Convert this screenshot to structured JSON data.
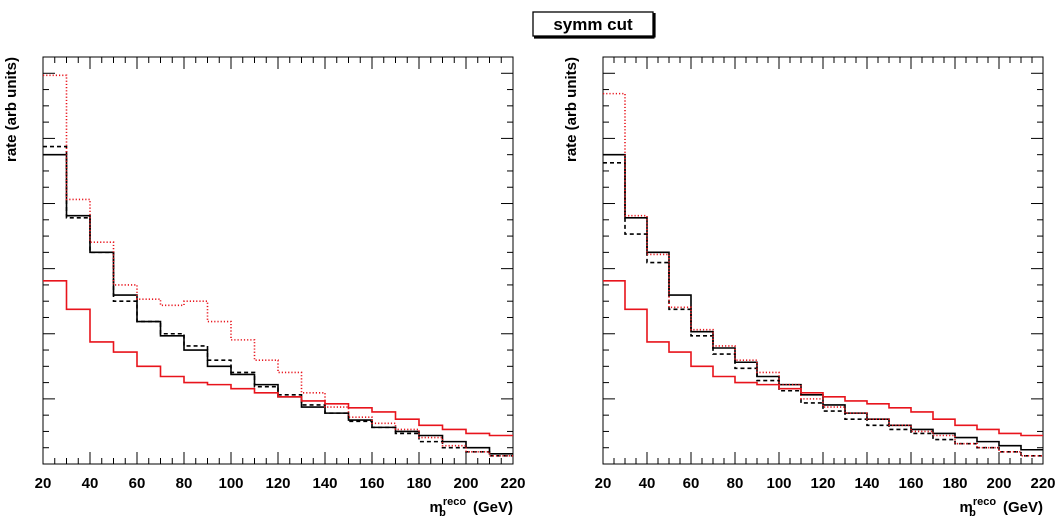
{
  "title": "symm cut",
  "chart_data": [
    {
      "type": "line",
      "step": true,
      "xlabel": "m",
      "xlabel_sub": "b",
      "xlabel_sup": "reco",
      "xlabel_unit": "(GeV)",
      "ylabel": "rate (arb units)",
      "xlim": [
        20,
        220
      ],
      "ylim": [
        0,
        1
      ],
      "xticks": [
        20,
        40,
        60,
        80,
        100,
        120,
        140,
        160,
        180,
        200,
        220
      ],
      "y_tick_labels": false,
      "bin_edges": [
        20,
        30,
        40,
        50,
        60,
        70,
        80,
        90,
        100,
        110,
        120,
        130,
        140,
        150,
        160,
        170,
        180,
        190,
        200,
        210,
        220
      ],
      "series": [
        {
          "style": "black-solid",
          "color": "#000000",
          "dash": "none",
          "values": [
            0.76,
            0.61,
            0.52,
            0.415,
            0.35,
            0.315,
            0.28,
            0.24,
            0.22,
            0.195,
            0.165,
            0.14,
            0.125,
            0.108,
            0.09,
            0.08,
            0.07,
            0.055,
            0.04,
            0.025
          ]
        },
        {
          "style": "black-dashed",
          "color": "#000000",
          "dash": "4,3",
          "values": [
            0.78,
            0.605,
            0.52,
            0.4,
            0.35,
            0.32,
            0.29,
            0.255,
            0.225,
            0.19,
            0.17,
            0.145,
            0.125,
            0.105,
            0.09,
            0.075,
            0.055,
            0.04,
            0.03,
            0.02
          ]
        },
        {
          "style": "red-solid",
          "color": "#e8141c",
          "dash": "none",
          "values": [
            0.45,
            0.38,
            0.3,
            0.275,
            0.24,
            0.215,
            0.2,
            0.195,
            0.185,
            0.175,
            0.165,
            0.155,
            0.148,
            0.138,
            0.128,
            0.11,
            0.095,
            0.085,
            0.075,
            0.07
          ]
        },
        {
          "style": "red-dotted",
          "color": "#e8141c",
          "dash": "1.2,2",
          "values": [
            0.955,
            0.65,
            0.545,
            0.44,
            0.405,
            0.39,
            0.4,
            0.35,
            0.305,
            0.255,
            0.225,
            0.175,
            0.14,
            0.115,
            0.1,
            0.085,
            0.065,
            0.045,
            0.03,
            0.02
          ]
        }
      ]
    },
    {
      "type": "line",
      "step": true,
      "xlabel": "m",
      "xlabel_sub": "b",
      "xlabel_sup": "reco",
      "xlabel_unit": "(GeV)",
      "ylabel": "rate (arb units)",
      "xlim": [
        20,
        220
      ],
      "ylim": [
        0,
        1
      ],
      "xticks": [
        20,
        40,
        60,
        80,
        100,
        120,
        140,
        160,
        180,
        200,
        220
      ],
      "y_tick_labels": false,
      "bin_edges": [
        20,
        30,
        40,
        50,
        60,
        70,
        80,
        90,
        100,
        110,
        120,
        130,
        140,
        150,
        160,
        170,
        180,
        190,
        200,
        210,
        220
      ],
      "series": [
        {
          "style": "black-solid",
          "color": "#000000",
          "dash": "none",
          "values": [
            0.76,
            0.605,
            0.52,
            0.415,
            0.325,
            0.285,
            0.25,
            0.215,
            0.195,
            0.17,
            0.145,
            0.125,
            0.11,
            0.095,
            0.085,
            0.075,
            0.065,
            0.055,
            0.045,
            0.035
          ]
        },
        {
          "style": "black-dashed",
          "color": "#000000",
          "dash": "4,3",
          "values": [
            0.74,
            0.565,
            0.495,
            0.38,
            0.315,
            0.27,
            0.235,
            0.205,
            0.18,
            0.15,
            0.13,
            0.11,
            0.095,
            0.085,
            0.075,
            0.06,
            0.05,
            0.04,
            0.03,
            0.02
          ]
        },
        {
          "style": "red-solid",
          "color": "#e8141c",
          "dash": "none",
          "values": [
            0.45,
            0.38,
            0.3,
            0.275,
            0.24,
            0.215,
            0.2,
            0.195,
            0.185,
            0.175,
            0.165,
            0.155,
            0.148,
            0.138,
            0.128,
            0.11,
            0.095,
            0.085,
            0.075,
            0.07
          ]
        },
        {
          "style": "red-dotted",
          "color": "#e8141c",
          "dash": "1.2,2",
          "values": [
            0.91,
            0.61,
            0.515,
            0.385,
            0.33,
            0.29,
            0.255,
            0.225,
            0.195,
            0.16,
            0.14,
            0.125,
            0.11,
            0.095,
            0.08,
            0.07,
            0.05,
            0.04,
            0.03,
            0.02
          ]
        }
      ]
    }
  ]
}
